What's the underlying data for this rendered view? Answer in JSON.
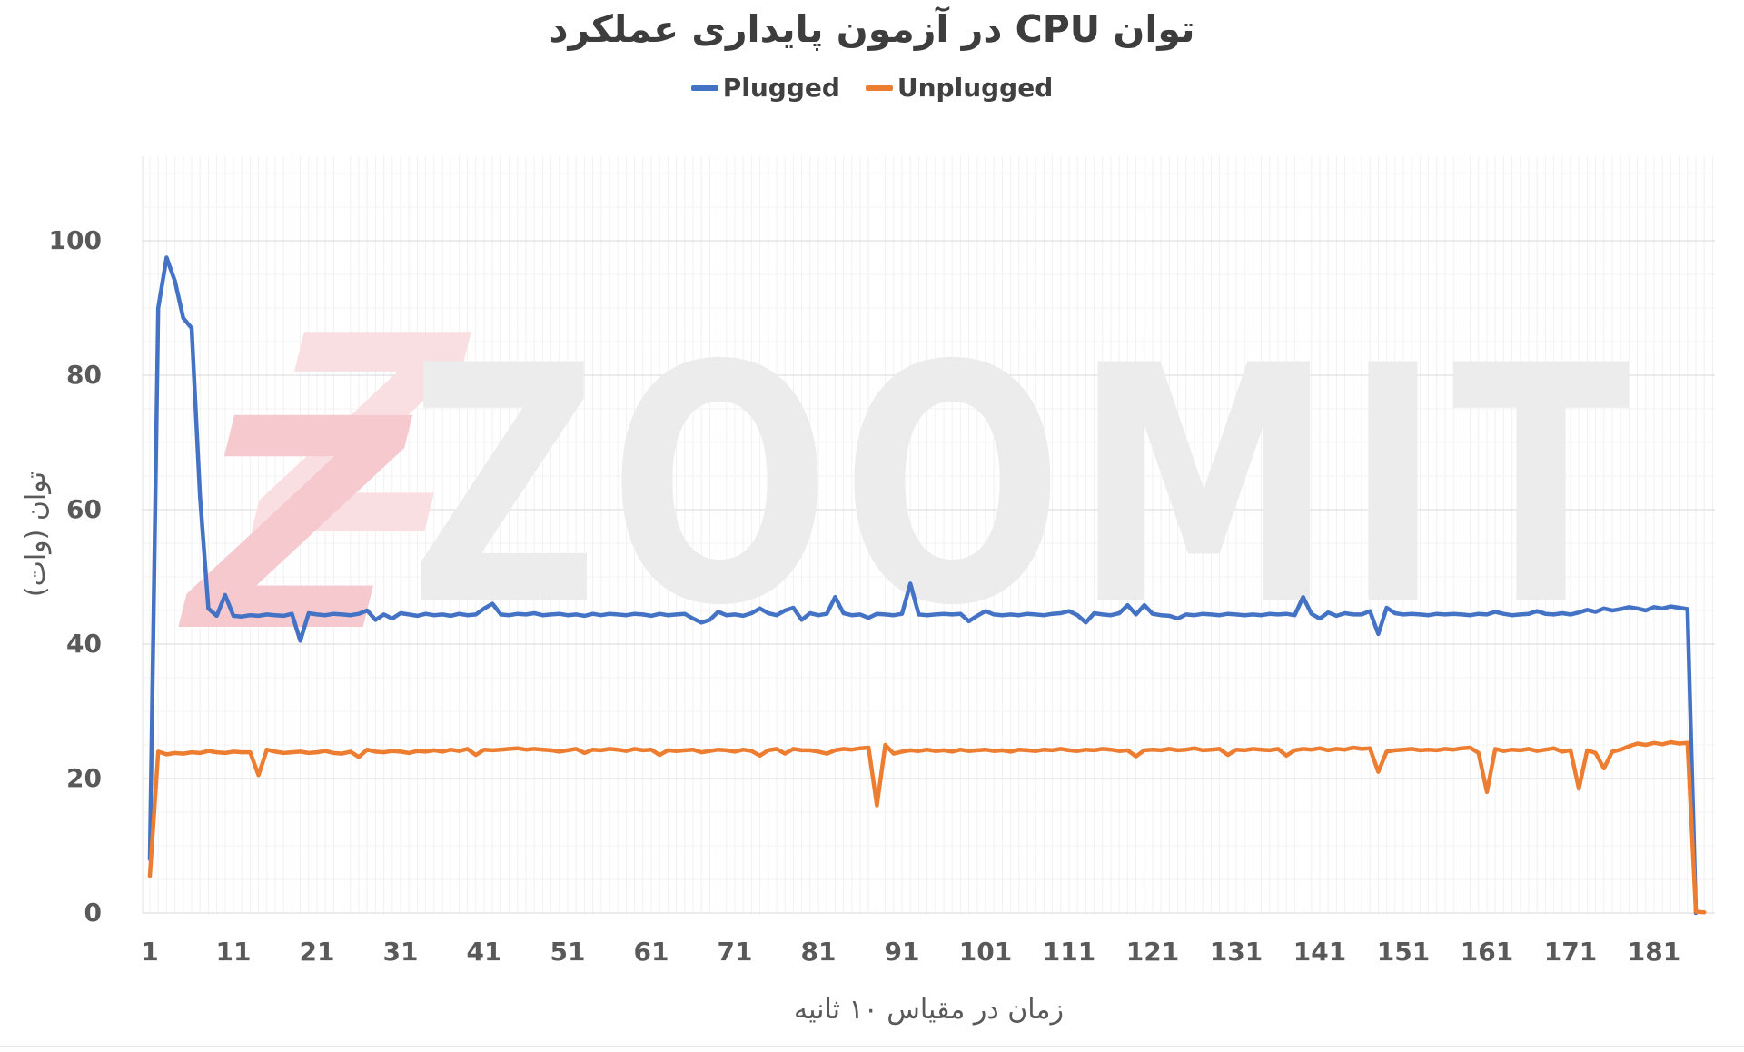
{
  "watermark": {
    "brand_text": "ZOOMIT",
    "logo_glyph": "Z",
    "text_fill": "#ececec",
    "logo_fill_light": "#fadfe2",
    "logo_fill_dark": "#f6c9cf"
  },
  "chart_data": {
    "type": "line",
    "title": "توان CPU در آزمون پایداری عملکرد",
    "xlabel": "زمان در مقیاس ۱۰ ثانیه",
    "ylabel": "توان (وات)",
    "ylim": [
      0,
      110
    ],
    "x_start": 1,
    "x_ticks": [
      1,
      11,
      21,
      31,
      41,
      51,
      61,
      71,
      81,
      91,
      101,
      111,
      121,
      131,
      141,
      151,
      161,
      171,
      181
    ],
    "y_ticks": [
      0,
      20,
      40,
      60,
      80,
      100
    ],
    "y_major_step": 20,
    "y_minor_step": 5,
    "grid": true,
    "legend_position": "top-center",
    "series": [
      {
        "name": "Plugged",
        "color": "#4472C4",
        "values": [
          8,
          90,
          97.5,
          94,
          88.5,
          87,
          62,
          45.3,
          44.2,
          47.3,
          44.2,
          44.1,
          44.3,
          44.2,
          44.4,
          44.3,
          44.2,
          44.5,
          40.5,
          44.6,
          44.4,
          44.3,
          44.5,
          44.4,
          44.3,
          44.5,
          45.0,
          43.6,
          44.4,
          43.8,
          44.6,
          44.4,
          44.2,
          44.5,
          44.3,
          44.4,
          44.2,
          44.5,
          44.3,
          44.4,
          45.3,
          46.0,
          44.4,
          44.3,
          44.5,
          44.4,
          44.6,
          44.3,
          44.4,
          44.5,
          44.3,
          44.4,
          44.2,
          44.5,
          44.3,
          44.5,
          44.4,
          44.3,
          44.5,
          44.4,
          44.2,
          44.5,
          44.3,
          44.4,
          44.5,
          43.8,
          43.2,
          43.6,
          44.8,
          44.3,
          44.4,
          44.2,
          44.6,
          45.3,
          44.6,
          44.3,
          45.0,
          45.4,
          43.6,
          44.6,
          44.3,
          44.5,
          47.0,
          44.6,
          44.3,
          44.4,
          43.9,
          44.5,
          44.4,
          44.3,
          44.5,
          49.0,
          44.4,
          44.3,
          44.4,
          44.5,
          44.4,
          44.5,
          43.4,
          44.2,
          44.9,
          44.4,
          44.3,
          44.4,
          44.3,
          44.5,
          44.4,
          44.3,
          44.5,
          44.6,
          44.9,
          44.3,
          43.2,
          44.6,
          44.4,
          44.3,
          44.6,
          45.8,
          44.4,
          45.8,
          44.5,
          44.3,
          44.2,
          43.8,
          44.4,
          44.3,
          44.5,
          44.4,
          44.3,
          44.5,
          44.4,
          44.3,
          44.4,
          44.3,
          44.5,
          44.4,
          44.5,
          44.3,
          47.0,
          44.5,
          43.8,
          44.7,
          44.2,
          44.6,
          44.4,
          44.4,
          44.9,
          41.5,
          45.4,
          44.6,
          44.4,
          44.5,
          44.4,
          44.3,
          44.5,
          44.4,
          44.5,
          44.4,
          44.3,
          44.5,
          44.4,
          44.8,
          44.5,
          44.3,
          44.4,
          44.5,
          44.9,
          44.5,
          44.4,
          44.6,
          44.4,
          44.7,
          45.1,
          44.8,
          45.3,
          45.0,
          45.2,
          45.5,
          45.3,
          45.0,
          45.5,
          45.3,
          45.6,
          45.4,
          45.2,
          0
        ]
      },
      {
        "name": "Unplugged",
        "color": "#ED7D31",
        "values": [
          5.5,
          24.0,
          23.6,
          23.8,
          23.7,
          23.9,
          23.8,
          24.1,
          23.9,
          23.8,
          24.0,
          23.9,
          23.9,
          20.5,
          24.3,
          24.0,
          23.8,
          23.9,
          24.0,
          23.8,
          23.9,
          24.1,
          23.8,
          23.7,
          24.0,
          23.2,
          24.3,
          24.0,
          23.9,
          24.1,
          24.0,
          23.8,
          24.1,
          24.0,
          24.2,
          24.0,
          24.3,
          24.1,
          24.4,
          23.5,
          24.3,
          24.2,
          24.3,
          24.4,
          24.5,
          24.3,
          24.4,
          24.3,
          24.2,
          24.0,
          24.2,
          24.4,
          23.8,
          24.3,
          24.2,
          24.4,
          24.3,
          24.1,
          24.4,
          24.2,
          24.3,
          23.5,
          24.2,
          24.1,
          24.2,
          24.3,
          23.9,
          24.1,
          24.3,
          24.2,
          24.0,
          24.3,
          24.1,
          23.4,
          24.2,
          24.4,
          23.7,
          24.4,
          24.2,
          24.2,
          24.0,
          23.7,
          24.2,
          24.4,
          24.3,
          24.5,
          24.6,
          16.0,
          25.0,
          23.7,
          24.0,
          24.2,
          24.1,
          24.3,
          24.1,
          24.2,
          24.0,
          24.3,
          24.1,
          24.2,
          24.3,
          24.1,
          24.2,
          24.0,
          24.3,
          24.2,
          24.1,
          24.3,
          24.2,
          24.4,
          24.2,
          24.1,
          24.3,
          24.2,
          24.4,
          24.3,
          24.1,
          24.2,
          23.3,
          24.2,
          24.3,
          24.2,
          24.4,
          24.2,
          24.3,
          24.5,
          24.2,
          24.3,
          24.4,
          23.5,
          24.3,
          24.2,
          24.4,
          24.3,
          24.2,
          24.4,
          23.4,
          24.2,
          24.4,
          24.3,
          24.5,
          24.2,
          24.4,
          24.3,
          24.6,
          24.4,
          24.5,
          21.0,
          24.0,
          24.2,
          24.3,
          24.4,
          24.2,
          24.3,
          24.2,
          24.4,
          24.3,
          24.5,
          24.6,
          23.8,
          18.0,
          24.4,
          24.1,
          24.3,
          24.2,
          24.4,
          24.1,
          24.3,
          24.5,
          24.0,
          24.2,
          18.5,
          24.2,
          23.8,
          21.5,
          24.0,
          24.3,
          24.8,
          25.2,
          25.0,
          25.3,
          25.1,
          25.4,
          25.2,
          25.3,
          0.2,
          0.1
        ]
      }
    ]
  }
}
